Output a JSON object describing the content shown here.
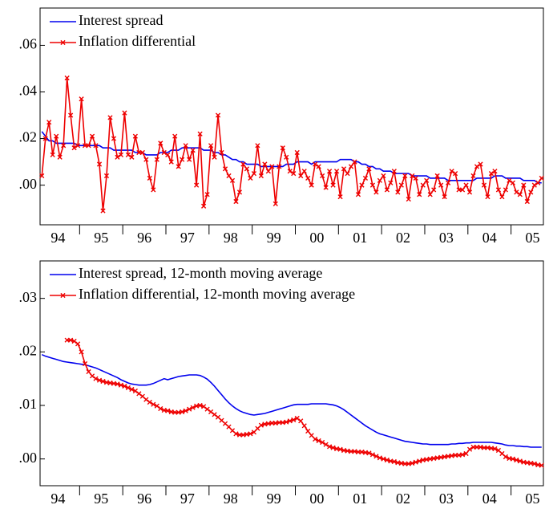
{
  "chart_data": [
    {
      "type": "line",
      "categories": [
        null,
        null,
        null,
        null,
        null,
        "94",
        null,
        null,
        null,
        null,
        null,
        null,
        null,
        null,
        null,
        null,
        null,
        "95",
        null,
        null,
        null,
        null,
        null,
        null,
        null,
        null,
        null,
        null,
        null,
        "96",
        null,
        null,
        null,
        null,
        null,
        null,
        null,
        null,
        null,
        null,
        null,
        "97",
        null,
        null,
        null,
        null,
        null,
        null,
        null,
        null,
        null,
        null,
        null,
        "98",
        null,
        null,
        null,
        null,
        null,
        null,
        null,
        null,
        null,
        null,
        null,
        "99",
        null,
        null,
        null,
        null,
        null,
        null,
        null,
        null,
        null,
        null,
        null,
        "00",
        null,
        null,
        null,
        null,
        null,
        null,
        null,
        null,
        null,
        null,
        null,
        "01",
        null,
        null,
        null,
        null,
        null,
        null,
        null,
        null,
        null,
        null,
        null,
        "02",
        null,
        null,
        null,
        null,
        null,
        null,
        null,
        null,
        null,
        null,
        null,
        "03",
        null,
        null,
        null,
        null,
        null,
        null,
        null,
        null,
        null,
        null,
        null,
        "04",
        null,
        null,
        null,
        null,
        null,
        null,
        null,
        null,
        null,
        null,
        null,
        "05",
        null,
        null
      ],
      "ylim": [
        -0.017,
        0.076
      ],
      "yticks": [
        {
          "value": 0.0,
          "label": ".00"
        },
        {
          "value": 0.02,
          "label": ".02"
        },
        {
          "value": 0.04,
          "label": ".04"
        },
        {
          "value": 0.06,
          "label": ".06"
        }
      ],
      "series": [
        {
          "name": "Interest spread",
          "color": "#0000ee",
          "marker": "none",
          "values": [
            0.023,
            0.021,
            0.019,
            0.019,
            0.018,
            0.018,
            0.018,
            0.018,
            0.018,
            0.018,
            0.017,
            0.017,
            0.017,
            0.017,
            0.017,
            0.017,
            0.017,
            0.016,
            0.016,
            0.016,
            0.015,
            0.015,
            0.015,
            0.015,
            0.015,
            0.015,
            0.014,
            0.014,
            0.014,
            0.013,
            0.013,
            0.013,
            0.013,
            0.014,
            0.014,
            0.014,
            0.015,
            0.015,
            0.015,
            0.016,
            0.016,
            0.016,
            0.016,
            0.016,
            0.016,
            0.015,
            0.015,
            0.015,
            0.014,
            0.014,
            0.013,
            0.013,
            0.012,
            0.011,
            0.011,
            0.01,
            0.01,
            0.009,
            0.009,
            0.009,
            0.009,
            0.008,
            0.008,
            0.008,
            0.008,
            0.008,
            0.008,
            0.008,
            0.009,
            0.009,
            0.009,
            0.01,
            0.01,
            0.01,
            0.01,
            0.009,
            0.01,
            0.01,
            0.01,
            0.01,
            0.01,
            0.01,
            0.01,
            0.011,
            0.011,
            0.011,
            0.011,
            0.01,
            0.01,
            0.009,
            0.009,
            0.008,
            0.008,
            0.007,
            0.007,
            0.006,
            0.006,
            0.006,
            0.005,
            0.005,
            0.005,
            0.005,
            0.005,
            0.004,
            0.004,
            0.004,
            0.004,
            0.004,
            0.003,
            0.003,
            0.003,
            0.003,
            0.003,
            0.002,
            0.002,
            0.002,
            0.002,
            0.002,
            0.002,
            0.002,
            0.002,
            0.003,
            0.003,
            0.003,
            0.003,
            0.003,
            0.004,
            0.004,
            0.004,
            0.003,
            0.003,
            0.003,
            0.003,
            0.003,
            0.002,
            0.002,
            0.002,
            0.002,
            0.001,
            0.001
          ]
        },
        {
          "name": "Inflation differential",
          "color": "#ee0000",
          "marker": "x",
          "values": [
            0.004,
            0.02,
            0.027,
            0.013,
            0.021,
            0.012,
            0.017,
            0.046,
            0.03,
            0.016,
            0.017,
            0.037,
            0.017,
            0.017,
            0.021,
            0.017,
            0.009,
            -0.011,
            0.004,
            0.029,
            0.02,
            0.012,
            0.013,
            0.031,
            0.013,
            0.012,
            0.021,
            0.014,
            0.014,
            0.011,
            0.003,
            -0.002,
            0.011,
            0.018,
            0.014,
            0.013,
            0.01,
            0.021,
            0.008,
            0.011,
            0.017,
            0.011,
            0.015,
            0.0,
            0.022,
            -0.009,
            -0.004,
            0.017,
            0.012,
            0.03,
            0.014,
            0.007,
            0.004,
            0.002,
            -0.007,
            -0.003,
            0.009,
            0.007,
            0.003,
            0.005,
            0.017,
            0.004,
            0.009,
            0.006,
            0.008,
            -0.008,
            0.008,
            0.016,
            0.012,
            0.006,
            0.005,
            0.014,
            0.004,
            0.006,
            0.003,
            0.0,
            0.009,
            0.008,
            0.004,
            -0.001,
            0.006,
            0.0,
            0.006,
            -0.005,
            0.007,
            0.005,
            0.008,
            0.01,
            -0.004,
            0.0,
            0.003,
            0.007,
            0.0,
            -0.003,
            0.002,
            0.004,
            -0.002,
            0.001,
            0.006,
            -0.003,
            0.0,
            0.004,
            -0.006,
            0.004,
            0.003,
            -0.004,
            0.0,
            0.002,
            -0.004,
            -0.002,
            0.004,
            0.0,
            -0.005,
            0.001,
            0.006,
            0.005,
            -0.002,
            -0.002,
            0.0,
            -0.003,
            0.004,
            0.008,
            0.009,
            0.0,
            -0.005,
            0.005,
            0.006,
            -0.002,
            -0.005,
            -0.002,
            0.002,
            0.001,
            -0.003,
            -0.004,
            0.0,
            -0.007,
            -0.003,
            0.0,
            0.001,
            0.003
          ]
        }
      ]
    },
    {
      "type": "line",
      "categories": [
        null,
        null,
        null,
        null,
        null,
        "94",
        null,
        null,
        null,
        null,
        null,
        null,
        null,
        null,
        null,
        null,
        null,
        "95",
        null,
        null,
        null,
        null,
        null,
        null,
        null,
        null,
        null,
        null,
        null,
        "96",
        null,
        null,
        null,
        null,
        null,
        null,
        null,
        null,
        null,
        null,
        null,
        "97",
        null,
        null,
        null,
        null,
        null,
        null,
        null,
        null,
        null,
        null,
        null,
        "98",
        null,
        null,
        null,
        null,
        null,
        null,
        null,
        null,
        null,
        null,
        null,
        "99",
        null,
        null,
        null,
        null,
        null,
        null,
        null,
        null,
        null,
        null,
        null,
        "00",
        null,
        null,
        null,
        null,
        null,
        null,
        null,
        null,
        null,
        null,
        null,
        "01",
        null,
        null,
        null,
        null,
        null,
        null,
        null,
        null,
        null,
        null,
        null,
        "02",
        null,
        null,
        null,
        null,
        null,
        null,
        null,
        null,
        null,
        null,
        null,
        "03",
        null,
        null,
        null,
        null,
        null,
        null,
        null,
        null,
        null,
        null,
        null,
        "04",
        null,
        null,
        null,
        null,
        null,
        null,
        null,
        null,
        null,
        null,
        null,
        "05",
        null,
        null
      ],
      "ylim": [
        -0.005,
        0.037
      ],
      "yticks": [
        {
          "value": 0.0,
          "label": ".00"
        },
        {
          "value": 0.01,
          "label": ".01"
        },
        {
          "value": 0.02,
          "label": ".02"
        },
        {
          "value": 0.03,
          "label": ".03"
        }
      ],
      "series": [
        {
          "name": "Interest spread, 12-month moving average",
          "color": "#0000ee",
          "marker": "none",
          "values": [
            0.0195,
            0.0192,
            0.019,
            0.0188,
            0.0186,
            0.0184,
            0.0182,
            0.0181,
            0.018,
            0.0179,
            0.0178,
            0.0177,
            0.0176,
            0.0174,
            0.0172,
            0.017,
            0.0167,
            0.0164,
            0.0161,
            0.0158,
            0.0155,
            0.0152,
            0.0148,
            0.0145,
            0.0142,
            0.014,
            0.0139,
            0.0138,
            0.0138,
            0.0138,
            0.0139,
            0.0141,
            0.0144,
            0.0147,
            0.015,
            0.0148,
            0.015,
            0.0152,
            0.0154,
            0.0155,
            0.0156,
            0.0157,
            0.0157,
            0.0157,
            0.0156,
            0.0153,
            0.0149,
            0.0143,
            0.0136,
            0.0128,
            0.012,
            0.0112,
            0.0105,
            0.0099,
            0.0094,
            0.009,
            0.0087,
            0.0085,
            0.0083,
            0.0082,
            0.0083,
            0.0084,
            0.0085,
            0.0087,
            0.0089,
            0.0091,
            0.0093,
            0.0095,
            0.0097,
            0.0099,
            0.0101,
            0.0102,
            0.0102,
            0.0102,
            0.0102,
            0.0103,
            0.0103,
            0.0103,
            0.0103,
            0.0103,
            0.0102,
            0.0101,
            0.0099,
            0.0096,
            0.0092,
            0.0087,
            0.0082,
            0.0077,
            0.0072,
            0.0067,
            0.0062,
            0.0058,
            0.0054,
            0.005,
            0.0047,
            0.0045,
            0.0043,
            0.0041,
            0.0039,
            0.0037,
            0.0035,
            0.0033,
            0.0032,
            0.0031,
            0.003,
            0.0029,
            0.0028,
            0.0028,
            0.0027,
            0.0027,
            0.0027,
            0.0027,
            0.0027,
            0.0027,
            0.0028,
            0.0028,
            0.0029,
            0.0029,
            0.003,
            0.003,
            0.0031,
            0.0031,
            0.0031,
            0.0031,
            0.0031,
            0.0031,
            0.003,
            0.0029,
            0.0028,
            0.0026,
            0.0025,
            0.0025,
            0.0024,
            0.0024,
            0.0023,
            0.0023,
            0.0022,
            0.0022,
            0.0022,
            0.0022
          ]
        },
        {
          "name": "Inflation differential, 12-month moving average",
          "color": "#ee0000",
          "marker": "x",
          "values": [
            null,
            null,
            null,
            null,
            null,
            null,
            null,
            0.0222,
            0.0222,
            0.022,
            0.0215,
            0.02,
            0.0178,
            0.0163,
            0.0155,
            0.015,
            0.0147,
            0.0145,
            0.0143,
            0.0142,
            0.0141,
            0.014,
            0.0138,
            0.0136,
            0.0133,
            0.013,
            0.0127,
            0.0122,
            0.0117,
            0.0111,
            0.0106,
            0.0102,
            0.0099,
            0.0094,
            0.0091,
            0.009,
            0.0088,
            0.0087,
            0.0087,
            0.0088,
            0.009,
            0.0093,
            0.0096,
            0.0099,
            0.01,
            0.0098,
            0.0093,
            0.0088,
            0.0083,
            0.0078,
            0.0072,
            0.0066,
            0.006,
            0.0053,
            0.0047,
            0.0045,
            0.0045,
            0.0046,
            0.0047,
            0.005,
            0.0057,
            0.0063,
            0.0065,
            0.0066,
            0.0067,
            0.0067,
            0.0068,
            0.0068,
            0.0069,
            0.0071,
            0.0073,
            0.0076,
            0.0071,
            0.0062,
            0.0052,
            0.0044,
            0.0037,
            0.0034,
            0.0031,
            0.0027,
            0.0023,
            0.0021,
            0.0019,
            0.0018,
            0.0016,
            0.0015,
            0.0014,
            0.0014,
            0.0013,
            0.0013,
            0.0012,
            0.0011,
            0.0008,
            0.0005,
            0.0002,
            0.0,
            -0.0002,
            -0.0004,
            -0.0005,
            -0.0007,
            -0.0008,
            -0.0009,
            -0.0009,
            -0.0008,
            -0.0006,
            -0.0004,
            -0.0002,
            -0.0001,
            0.0,
            0.0001,
            0.0002,
            0.0003,
            0.0004,
            0.0005,
            0.0006,
            0.0007,
            0.0007,
            0.0008,
            0.001,
            0.0018,
            0.0022,
            0.0022,
            0.0022,
            0.0021,
            0.0021,
            0.002,
            0.0019,
            0.0016,
            0.001,
            0.0004,
            0.0001,
            0.0,
            -0.0002,
            -0.0004,
            -0.0006,
            -0.0007,
            -0.0008,
            -0.0009,
            -0.0011,
            -0.0012
          ]
        }
      ]
    }
  ]
}
